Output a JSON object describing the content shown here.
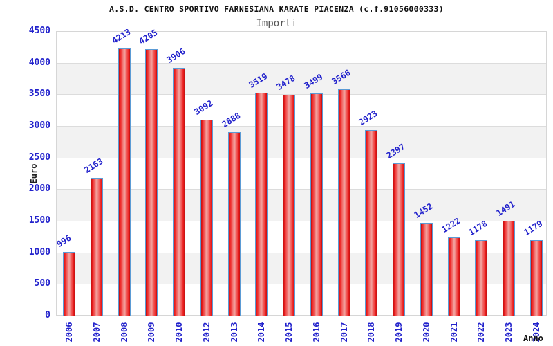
{
  "header": {
    "title": "A.S.D. CENTRO SPORTIVO FARNESIANA KARATE PIACENZA (c.f.91056000333)",
    "subtitle": "Importi"
  },
  "axes": {
    "y_label": "Euro",
    "x_label": "Anno",
    "y_ticks": [
      4500,
      4000,
      3500,
      3000,
      2500,
      2000,
      1500,
      1000,
      500,
      0
    ]
  },
  "colors": {
    "label_blue": "#2222cc",
    "bar_edge_red": "#c01010",
    "bar_mid_red": "#ee2020",
    "bar_highlight": "#f3a8a4",
    "bar_border_blue": "#5b9bd5",
    "band_gray": "#f2f2f2",
    "band_white": "#ffffff",
    "gridline_gray": "#dcdcdc",
    "title_color": "#111111",
    "subtitle_color": "#555555"
  },
  "chart_data": {
    "type": "bar",
    "title": "A.S.D. CENTRO SPORTIVO FARNESIANA KARATE PIACENZA (c.f.91056000333)",
    "subtitle": "Importi",
    "xlabel": "Anno",
    "ylabel": "Euro",
    "categories": [
      "2006",
      "2007",
      "2008",
      "2009",
      "2010",
      "2012",
      "2013",
      "2014",
      "2015",
      "2016",
      "2017",
      "2018",
      "2019",
      "2020",
      "2021",
      "2022",
      "2023",
      "2024"
    ],
    "values": [
      996,
      2163,
      4213,
      4205,
      3906,
      3092,
      2888,
      3519,
      3478,
      3499,
      3566,
      2923,
      2397,
      1452,
      1222,
      1178,
      1491,
      1179
    ],
    "ylim": [
      0,
      4500
    ],
    "ytick_step": 500,
    "grid": true,
    "legend": "none",
    "data_labels": true
  }
}
